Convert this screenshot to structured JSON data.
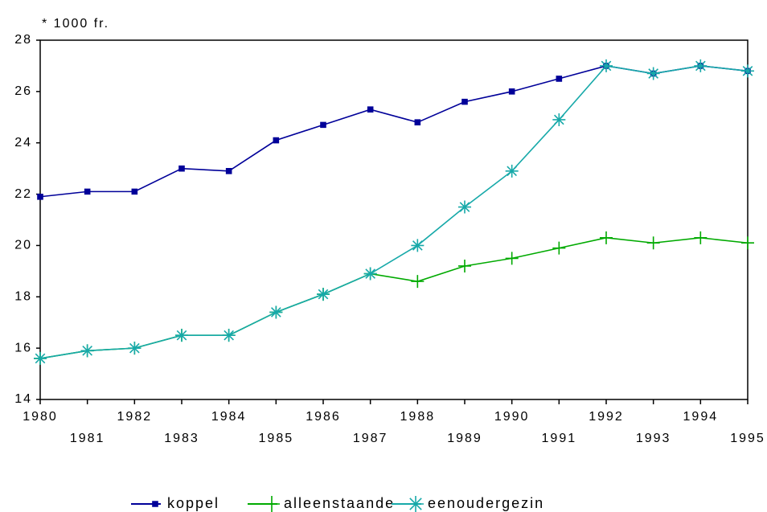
{
  "chart_data": {
    "type": "line",
    "y_unit_label": "* 1000 fr.",
    "x": [
      1980,
      1981,
      1982,
      1983,
      1984,
      1985,
      1986,
      1987,
      1988,
      1989,
      1990,
      1991,
      1992,
      1993,
      1994,
      1995
    ],
    "xlim": [
      1980,
      1995
    ],
    "xticks": [
      1980,
      1981,
      1982,
      1983,
      1984,
      1985,
      1986,
      1987,
      1988,
      1989,
      1990,
      1991,
      1992,
      1993,
      1994,
      1995
    ],
    "ylim": [
      14,
      28
    ],
    "yticks": [
      14,
      16,
      18,
      20,
      22,
      24,
      26,
      28
    ],
    "legend_position": "bottom",
    "series": [
      {
        "name": "koppel",
        "color": "#000099",
        "marker": "square",
        "values": [
          21.9,
          22.1,
          22.1,
          23.0,
          22.9,
          24.1,
          24.7,
          25.3,
          24.8,
          25.6,
          26.0,
          26.5,
          27.0,
          26.7,
          27.0,
          26.8
        ]
      },
      {
        "name": "alleenstaande",
        "color": "#00aa00",
        "marker": "plus",
        "values": [
          15.6,
          15.9,
          16.0,
          16.5,
          16.5,
          17.4,
          18.1,
          18.9,
          18.6,
          19.2,
          19.5,
          19.9,
          20.3,
          20.1,
          20.3,
          20.1
        ]
      },
      {
        "name": "eenoudergezin",
        "color": "#17a9a9",
        "marker": "asterisk",
        "values": [
          15.6,
          15.9,
          16.0,
          16.5,
          16.5,
          17.4,
          18.1,
          18.9,
          20.0,
          21.5,
          22.9,
          24.9,
          27.0,
          26.7,
          27.0,
          26.8
        ]
      }
    ]
  }
}
